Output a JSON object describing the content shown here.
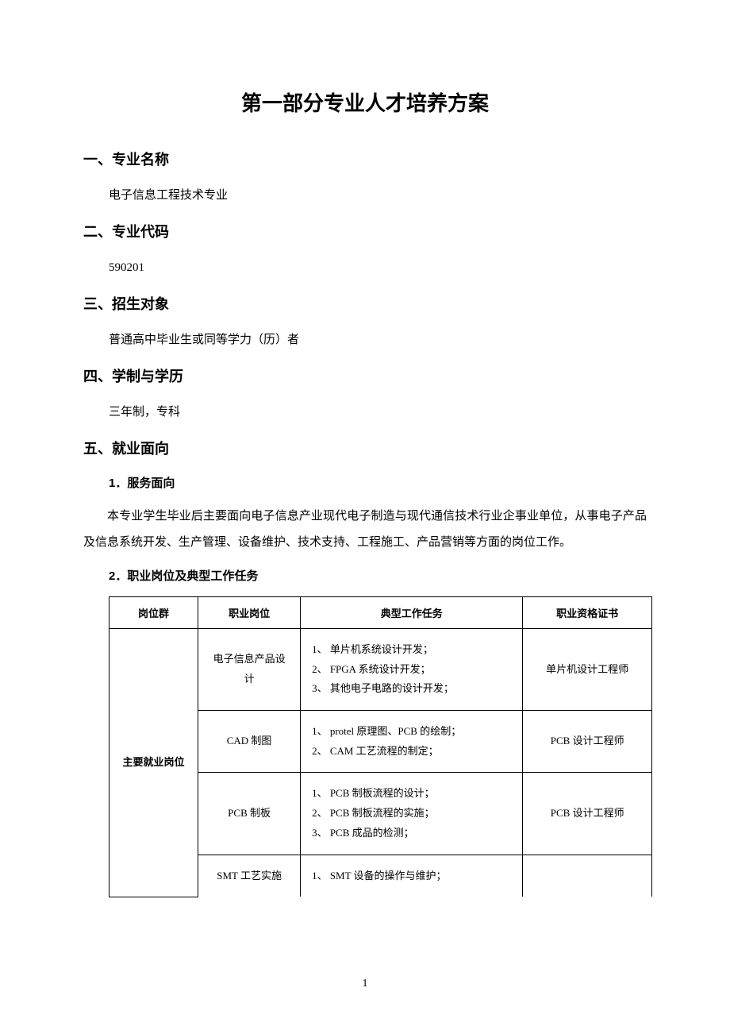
{
  "document": {
    "title": "第一部分专业人才培养方案",
    "page_number": "1",
    "sections": [
      {
        "heading": "一、专业名称",
        "body": "电子信息工程技术专业"
      },
      {
        "heading": "二、专业代码",
        "body": "590201"
      },
      {
        "heading": "三、招生对象",
        "body": "普通高中毕业生或同等学力（历）者"
      },
      {
        "heading": "四、学制与学历",
        "body": "三年制，专科"
      }
    ],
    "section5": {
      "heading": "五、就业面向",
      "sub1_heading": "1．服务面向",
      "sub1_body": "本专业学生毕业后主要面向电子信息产业现代电子制造与现代通信技术行业企事业单位，从事电子产品及信息系统开发、生产管理、设备维护、技术支持、工程施工、产品营销等方面的岗位工作。",
      "sub2_heading": "2．职业岗位及典型工作任务"
    },
    "table": {
      "headers": {
        "col1": "岗位群",
        "col2": "职业岗位",
        "col3": "典型工作任务",
        "col4": "职业资格证书"
      },
      "group_label": "主要就业岗位",
      "rows": [
        {
          "position": "电子信息产品设计",
          "tasks": "1、 单片机系统设计开发；\n2、 FPGA 系统设计开发；\n3、 其他电子电路的设计开发；",
          "cert": "单片机设计工程师"
        },
        {
          "position": "CAD 制图",
          "tasks": "1、 protel 原理图、PCB 的绘制；\n2、 CAM 工艺流程的制定；",
          "cert": "PCB 设计工程师"
        },
        {
          "position": "PCB 制板",
          "tasks": "1、 PCB 制板流程的设计；\n2、 PCB 制板流程的实施；\n3、 PCB 成品的检测；",
          "cert": "PCB 设计工程师"
        },
        {
          "position": "SMT 工艺实施",
          "tasks": "1、 SMT 设备的操作与维护；",
          "cert": ""
        }
      ]
    }
  }
}
